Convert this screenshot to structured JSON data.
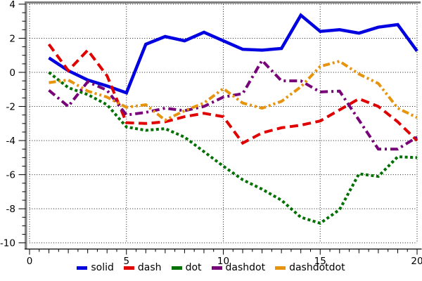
{
  "chart_data": {
    "type": "line",
    "title": "",
    "xlabel": "",
    "ylabel": "",
    "xlim": [
      0,
      20
    ],
    "ylim": [
      -10,
      4
    ],
    "grid": true,
    "legend_position": "bottom",
    "x_major_ticks": [
      0,
      5,
      10,
      15,
      20
    ],
    "x_tick_labels": [
      "0",
      "5",
      "10",
      "15",
      "20"
    ],
    "y_major_ticks": [
      4,
      2,
      0,
      -2,
      -4,
      -6,
      -8,
      -10
    ],
    "y_tick_labels": [
      "4",
      "2",
      "0",
      "-2",
      "-4",
      "-6",
      "-8",
      "-10"
    ],
    "x_minor_step": 0.5,
    "y_minor_step": 0.5,
    "x": [
      1,
      2,
      3,
      4,
      5,
      6,
      7,
      8,
      9,
      10,
      11,
      12,
      13,
      14,
      15,
      16,
      17,
      18,
      19,
      20
    ],
    "series": [
      {
        "name": "solid",
        "color": "#0000e0",
        "dash": "solid",
        "values": [
          0.85,
          0.1,
          -0.45,
          -0.8,
          -1.2,
          1.65,
          2.1,
          1.85,
          2.35,
          1.85,
          1.35,
          1.3,
          1.4,
          3.35,
          2.4,
          2.5,
          2.3,
          2.65,
          2.8,
          1.25
        ]
      },
      {
        "name": "dash",
        "color": "#e00000",
        "dash": "dash",
        "values": [
          1.65,
          0.1,
          1.3,
          -0.2,
          -2.95,
          -3.0,
          -2.9,
          -2.6,
          -2.4,
          -2.6,
          -4.15,
          -3.55,
          -3.25,
          -3.1,
          -2.85,
          -2.2,
          -1.55,
          -2.0,
          -2.9,
          -4.0
        ]
      },
      {
        "name": "dot",
        "color": "#007000",
        "dash": "dot",
        "values": [
          0.0,
          -0.9,
          -1.3,
          -1.9,
          -3.2,
          -3.4,
          -3.3,
          -3.8,
          -4.65,
          -5.5,
          -6.3,
          -6.85,
          -7.5,
          -8.5,
          -8.85,
          -8.05,
          -5.95,
          -6.1,
          -4.95,
          -5.0
        ]
      },
      {
        "name": "dashdot",
        "color": "#780078",
        "dash": "dashdot",
        "values": [
          -1.05,
          -2.0,
          -0.55,
          -1.05,
          -2.5,
          -2.35,
          -2.1,
          -2.25,
          -2.0,
          -1.45,
          -1.25,
          0.7,
          -0.5,
          -0.5,
          -1.15,
          -1.1,
          -2.8,
          -4.5,
          -4.5,
          -3.8
        ]
      },
      {
        "name": "dashdotdot",
        "color": "#e6940e",
        "dash": "dashdotdot",
        "values": [
          -0.6,
          -0.45,
          -1.1,
          -1.45,
          -2.05,
          -1.9,
          -2.8,
          -2.25,
          -1.8,
          -0.95,
          -1.8,
          -2.1,
          -1.7,
          -0.85,
          0.35,
          0.65,
          -0.1,
          -0.65,
          -2.1,
          -2.65
        ]
      }
    ]
  }
}
